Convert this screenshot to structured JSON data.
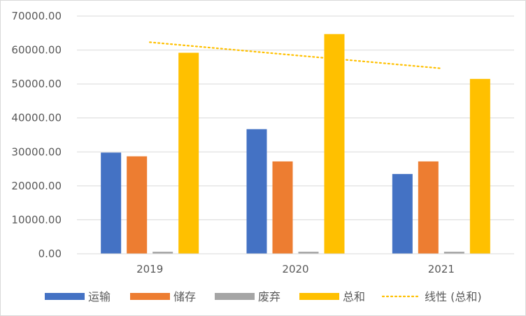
{
  "chart_data": {
    "type": "bar",
    "title": "",
    "xlabel": "",
    "ylabel": "",
    "categories": [
      "2019",
      "2020",
      "2021"
    ],
    "ylim": [
      0,
      70000
    ],
    "yticks": [
      "0.00",
      "10000.00",
      "20000.00",
      "30000.00",
      "40000.00",
      "50000.00",
      "60000.00",
      "70000.00"
    ],
    "grid": true,
    "legend_position": "bottom",
    "series": [
      {
        "name": "运输",
        "color": "#4472c4",
        "values": [
          29800,
          36700,
          23500
        ]
      },
      {
        "name": "储存",
        "color": "#ed7d31",
        "values": [
          28700,
          27200,
          27200
        ]
      },
      {
        "name": "废弃",
        "color": "#a5a5a5",
        "values": [
          600,
          600,
          600
        ]
      },
      {
        "name": "总和",
        "color": "#ffc000",
        "values": [
          59200,
          64700,
          51500
        ]
      }
    ],
    "trendline": {
      "name": "线性 (总和)",
      "color": "#ffc000",
      "style": "dotted",
      "values": [
        62300,
        58450,
        54600
      ]
    }
  }
}
